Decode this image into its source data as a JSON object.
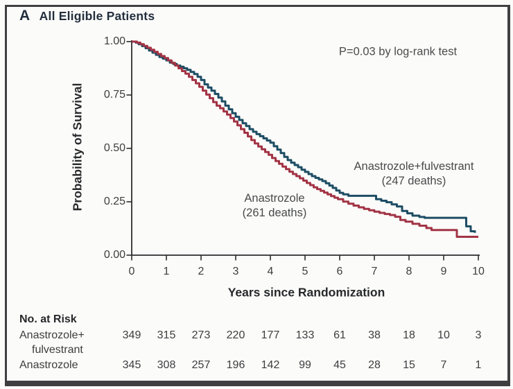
{
  "panel": {
    "letter": "A",
    "title": "All Eligible Patients"
  },
  "annotation": {
    "p_value": "P=0.03 by log-rank test"
  },
  "colors": {
    "anastrozole_fulvestrant_line": "#1d4d64",
    "anastrozole_line": "#a23445",
    "axis": "#2d2d2f",
    "frame": "#3f3f41",
    "text_dark": "#232f3f",
    "text_gray": "#3c3d3f"
  },
  "chart_data": {
    "type": "line",
    "subtype": "kaplan-meier-step",
    "title": "All Eligible Patients",
    "xlabel": "Years since Randomization",
    "ylabel": "Probability of Survival",
    "xlim": [
      0,
      10
    ],
    "ylim": [
      0,
      1
    ],
    "grid": false,
    "legend_position": "labels-annotated-on-plot",
    "x_tick_labels": [
      "0",
      "1",
      "2",
      "3",
      "4",
      "5",
      "6",
      "7",
      "8",
      "9",
      "10"
    ],
    "y_tick_labels": [
      "0.00",
      "0.25",
      "0.50",
      "0.75",
      "1.00"
    ],
    "series": [
      {
        "name": "Anastrozole+fulvestrant",
        "label_line1": "Anastrozole+fulvestrant",
        "label_line2": "(247 deaths)",
        "deaths": 247,
        "color": "#1d4d64",
        "points": [
          [
            0,
            1
          ],
          [
            0.08,
            1
          ],
          [
            0.12,
            0.995
          ],
          [
            0.2,
            0.988
          ],
          [
            0.3,
            0.979
          ],
          [
            0.4,
            0.969
          ],
          [
            0.5,
            0.958
          ],
          [
            0.6,
            0.948
          ],
          [
            0.7,
            0.938
          ],
          [
            0.8,
            0.928
          ],
          [
            0.9,
            0.92
          ],
          [
            1.0,
            0.912
          ],
          [
            1.1,
            0.902
          ],
          [
            1.2,
            0.895
          ],
          [
            1.3,
            0.888
          ],
          [
            1.4,
            0.882
          ],
          [
            1.5,
            0.875
          ],
          [
            1.6,
            0.868
          ],
          [
            1.7,
            0.858
          ],
          [
            1.8,
            0.848
          ],
          [
            1.9,
            0.835
          ],
          [
            2.0,
            0.82
          ],
          [
            2.1,
            0.8
          ],
          [
            2.2,
            0.785
          ],
          [
            2.3,
            0.77
          ],
          [
            2.4,
            0.755
          ],
          [
            2.5,
            0.738
          ],
          [
            2.6,
            0.72
          ],
          [
            2.7,
            0.7
          ],
          [
            2.8,
            0.683
          ],
          [
            2.9,
            0.665
          ],
          [
            3.0,
            0.648
          ],
          [
            3.1,
            0.633
          ],
          [
            3.2,
            0.618
          ],
          [
            3.3,
            0.605
          ],
          [
            3.4,
            0.59
          ],
          [
            3.5,
            0.578
          ],
          [
            3.6,
            0.567
          ],
          [
            3.7,
            0.557
          ],
          [
            3.8,
            0.547
          ],
          [
            3.9,
            0.537
          ],
          [
            4.0,
            0.527
          ],
          [
            4.1,
            0.51
          ],
          [
            4.2,
            0.494
          ],
          [
            4.3,
            0.478
          ],
          [
            4.4,
            0.46
          ],
          [
            4.5,
            0.445
          ],
          [
            4.6,
            0.433
          ],
          [
            4.7,
            0.422
          ],
          [
            4.8,
            0.412
          ],
          [
            4.9,
            0.4
          ],
          [
            5.0,
            0.39
          ],
          [
            5.1,
            0.38
          ],
          [
            5.2,
            0.37
          ],
          [
            5.3,
            0.362
          ],
          [
            5.4,
            0.355
          ],
          [
            5.5,
            0.347
          ],
          [
            5.6,
            0.337
          ],
          [
            5.7,
            0.326
          ],
          [
            5.8,
            0.315
          ],
          [
            5.9,
            0.303
          ],
          [
            6.0,
            0.292
          ],
          [
            6.1,
            0.285
          ],
          [
            6.25,
            0.278
          ],
          [
            7.05,
            0.262
          ],
          [
            7.2,
            0.255
          ],
          [
            7.35,
            0.248
          ],
          [
            7.5,
            0.238
          ],
          [
            7.65,
            0.228
          ],
          [
            7.8,
            0.207
          ],
          [
            7.95,
            0.196
          ],
          [
            8.1,
            0.185
          ],
          [
            8.3,
            0.179
          ],
          [
            8.45,
            0.175
          ],
          [
            9.65,
            0.135
          ],
          [
            9.78,
            0.112
          ],
          [
            9.9,
            0.105
          ]
        ]
      },
      {
        "name": "Anastrozole",
        "label_line1": "Anastrozole",
        "label_line2": "(261 deaths)",
        "deaths": 261,
        "color": "#a23445",
        "points": [
          [
            0,
            1
          ],
          [
            0.1,
            1
          ],
          [
            0.15,
            0.995
          ],
          [
            0.25,
            0.988
          ],
          [
            0.35,
            0.98
          ],
          [
            0.45,
            0.971
          ],
          [
            0.55,
            0.962
          ],
          [
            0.65,
            0.952
          ],
          [
            0.75,
            0.942
          ],
          [
            0.85,
            0.932
          ],
          [
            0.95,
            0.923
          ],
          [
            1.05,
            0.912
          ],
          [
            1.15,
            0.9
          ],
          [
            1.25,
            0.888
          ],
          [
            1.35,
            0.875
          ],
          [
            1.45,
            0.862
          ],
          [
            1.55,
            0.85
          ],
          [
            1.65,
            0.835
          ],
          [
            1.75,
            0.82
          ],
          [
            1.85,
            0.805
          ],
          [
            1.95,
            0.788
          ],
          [
            2.05,
            0.77
          ],
          [
            2.15,
            0.752
          ],
          [
            2.25,
            0.735
          ],
          [
            2.35,
            0.717
          ],
          [
            2.45,
            0.7
          ],
          [
            2.55,
            0.688
          ],
          [
            2.65,
            0.673
          ],
          [
            2.75,
            0.658
          ],
          [
            2.85,
            0.642
          ],
          [
            2.95,
            0.626
          ],
          [
            3.05,
            0.608
          ],
          [
            3.15,
            0.59
          ],
          [
            3.25,
            0.573
          ],
          [
            3.35,
            0.556
          ],
          [
            3.45,
            0.539
          ],
          [
            3.55,
            0.523
          ],
          [
            3.65,
            0.509
          ],
          [
            3.75,
            0.496
          ],
          [
            3.85,
            0.483
          ],
          [
            3.95,
            0.47
          ],
          [
            4.05,
            0.455
          ],
          [
            4.15,
            0.441
          ],
          [
            4.25,
            0.428
          ],
          [
            4.35,
            0.415
          ],
          [
            4.45,
            0.403
          ],
          [
            4.55,
            0.391
          ],
          [
            4.65,
            0.38
          ],
          [
            4.75,
            0.37
          ],
          [
            4.85,
            0.36
          ],
          [
            4.95,
            0.349
          ],
          [
            5.05,
            0.338
          ],
          [
            5.15,
            0.328
          ],
          [
            5.25,
            0.318
          ],
          [
            5.35,
            0.309
          ],
          [
            5.45,
            0.301
          ],
          [
            5.55,
            0.293
          ],
          [
            5.65,
            0.285
          ],
          [
            5.75,
            0.277
          ],
          [
            5.85,
            0.269
          ],
          [
            5.95,
            0.262
          ],
          [
            6.1,
            0.251
          ],
          [
            6.25,
            0.241
          ],
          [
            6.4,
            0.232
          ],
          [
            6.55,
            0.224
          ],
          [
            6.7,
            0.217
          ],
          [
            6.85,
            0.21
          ],
          [
            7.0,
            0.204
          ],
          [
            7.15,
            0.198
          ],
          [
            7.3,
            0.193
          ],
          [
            7.45,
            0.188
          ],
          [
            7.6,
            0.18
          ],
          [
            7.75,
            0.165
          ],
          [
            7.9,
            0.157
          ],
          [
            8.1,
            0.147
          ],
          [
            8.3,
            0.138
          ],
          [
            8.5,
            0.127
          ],
          [
            8.65,
            0.118
          ],
          [
            9.38,
            0.086
          ],
          [
            10.0,
            0.086
          ]
        ]
      }
    ]
  },
  "risk_table": {
    "heading": "No. at Risk",
    "rows": [
      {
        "label_line1": "Anastrozole+",
        "label_line2": "fulvestrant",
        "counts": [
          "349",
          "315",
          "273",
          "220",
          "177",
          "133",
          "61",
          "38",
          "18",
          "10",
          "3"
        ]
      },
      {
        "label_line1": "Anastrozole",
        "label_line2": "",
        "counts": [
          "345",
          "308",
          "257",
          "196",
          "142",
          "99",
          "45",
          "28",
          "15",
          "7",
          "1"
        ]
      }
    ]
  }
}
